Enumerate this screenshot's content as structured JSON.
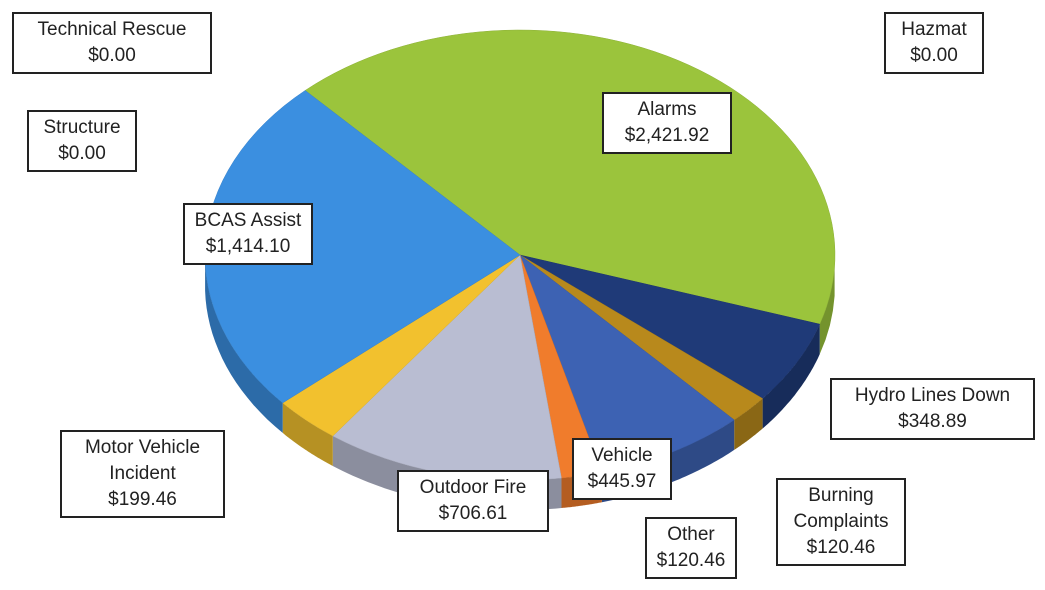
{
  "chart_data": {
    "type": "pie",
    "categories": [
      "Alarms",
      "Hydro Lines Down",
      "Burning Complaints",
      "Vehicle",
      "Other",
      "Outdoor Fire",
      "Motor Vehicle Incident",
      "BCAS Assist",
      "Structure",
      "Technical Rescue",
      "Hazmat"
    ],
    "values": [
      2421.92,
      348.89,
      120.46,
      445.97,
      120.46,
      706.61,
      199.46,
      1414.1,
      0,
      0,
      0
    ],
    "value_labels": [
      "$2,421.92",
      "$348.89",
      "$120.46",
      "$445.97",
      "$120.46",
      "$706.61",
      "$199.46",
      "$1,414.10",
      "$0.00",
      "$0.00",
      "$0.00"
    ],
    "colors": [
      "#9bc43c",
      "#1f3a78",
      "#b8891c",
      "#3d62b3",
      "#f07c2c",
      "#b9bdd2",
      "#f2c12e",
      "#3b8fe0",
      "#7f7f7f",
      "#a0a0a0",
      "#5a5a5a"
    ]
  }
}
